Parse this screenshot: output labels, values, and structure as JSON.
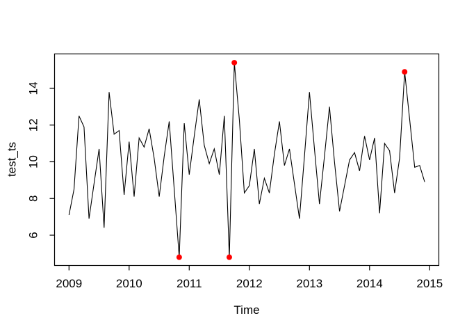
{
  "figure": {
    "background": "#ffffff",
    "kind": "R base plot"
  },
  "chart_data": {
    "type": "line",
    "title": "",
    "xlabel": "Time",
    "ylabel": "test_ts",
    "x_start_year": 2009,
    "frequency": 12,
    "series": [
      {
        "name": "test_ts",
        "color": "#000000",
        "values": [
          7.1,
          8.5,
          12.5,
          11.9,
          6.9,
          8.8,
          10.7,
          6.4,
          13.8,
          11.5,
          11.7,
          8.2,
          11.1,
          8.1,
          11.3,
          10.8,
          11.8,
          10.2,
          8.1,
          10.3,
          12.2,
          8.5,
          4.8,
          12.1,
          9.3,
          11.4,
          13.4,
          10.9,
          9.9,
          10.7,
          9.3,
          12.5,
          4.8,
          15.4,
          12.3,
          8.3,
          8.7,
          10.7,
          7.7,
          9.1,
          8.3,
          10.4,
          12.2,
          9.8,
          10.7,
          8.8,
          6.9,
          10.3,
          13.8,
          10.7,
          7.7,
          10.3,
          13.0,
          10.0,
          7.3,
          8.7,
          10.1,
          10.5,
          9.5,
          11.4,
          10.1,
          11.3,
          7.2,
          11.0,
          10.6,
          8.3,
          10.2,
          14.9,
          12.3,
          9.7,
          9.8,
          8.9
        ]
      }
    ],
    "outliers": {
      "color": "#ff0000",
      "marker": "filled-circle",
      "points": [
        {
          "t": 2010.8333,
          "v": 4.8
        },
        {
          "t": 2011.6667,
          "v": 4.8
        },
        {
          "t": 2011.75,
          "v": 15.4
        },
        {
          "t": 2014.5833,
          "v": 14.9
        }
      ]
    },
    "x_ticks": [
      2009,
      2010,
      2011,
      2012,
      2013,
      2014,
      2015
    ],
    "x_tick_labels": [
      "2009",
      "2010",
      "2011",
      "2012",
      "2013",
      "2014",
      "2015"
    ],
    "y_ticks": [
      6,
      8,
      10,
      12,
      14
    ],
    "y_tick_labels": [
      "6",
      "8",
      "10",
      "12",
      "14"
    ],
    "xlim": [
      2008.76,
      2015.16
    ],
    "ylim": [
      4.37,
      15.9
    ],
    "grid": false,
    "legend": null,
    "frame_color": "#000000"
  }
}
